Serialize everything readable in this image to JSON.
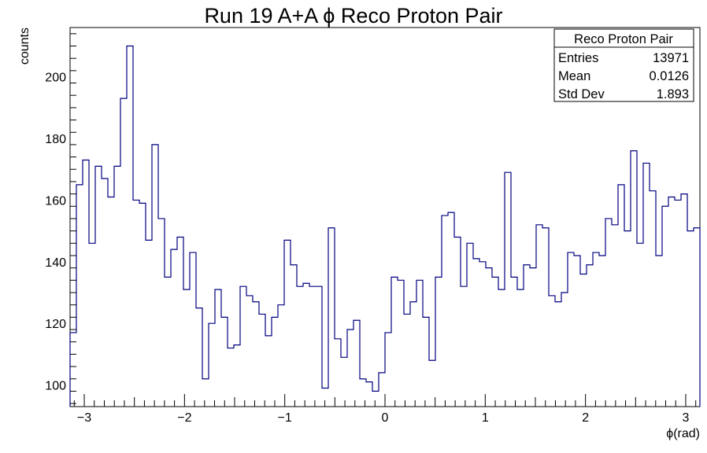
{
  "chart_data": {
    "type": "bar",
    "histogram": true,
    "title": "Run 19 A+A ϕ Reco Proton Pair",
    "xlabel": "ϕ(rad)",
    "ylabel": "counts",
    "xlim": [
      -3.1416,
      3.1416
    ],
    "ylim": [
      93,
      216
    ],
    "x_ticks": [
      -3,
      -2,
      -1,
      0,
      1,
      2,
      3
    ],
    "x_tick_labels": [
      "−3",
      "−2",
      "−1",
      "0",
      "1",
      "2",
      "3"
    ],
    "y_ticks": [
      100,
      120,
      140,
      160,
      180,
      200
    ],
    "y_tick_labels": [
      "100",
      "120",
      "140",
      "160",
      "180",
      "200"
    ],
    "grid": false,
    "line_color": "#00007f",
    "bin_count": 100,
    "values": [
      117,
      165,
      173,
      146,
      171,
      167,
      161,
      171,
      193,
      210,
      160,
      159,
      147,
      178,
      154,
      135,
      144,
      148,
      131,
      143,
      125,
      102,
      120,
      131,
      122,
      112,
      113,
      132,
      129,
      127,
      123,
      116,
      122,
      126,
      147,
      139,
      132,
      133,
      132,
      132,
      99,
      151,
      115,
      109,
      118,
      121,
      102,
      101,
      98,
      104,
      117,
      135,
      134,
      123,
      127,
      134,
      122,
      108,
      135,
      155,
      156,
      148,
      132,
      146,
      141,
      140,
      138,
      135,
      131,
      169,
      135,
      131,
      139,
      138,
      152,
      151,
      129,
      127,
      130,
      143,
      142,
      136,
      139,
      143,
      142,
      154,
      152,
      165,
      150,
      176,
      146,
      172,
      163,
      142,
      158,
      161,
      160,
      162,
      150,
      151
    ],
    "stats_box": {
      "name": "Reco Proton Pair",
      "rows": [
        {
          "label": "Entries",
          "value": "13971"
        },
        {
          "label": "Mean",
          "value": "0.0126"
        },
        {
          "label": "Std Dev",
          "value": "1.893"
        }
      ]
    }
  }
}
